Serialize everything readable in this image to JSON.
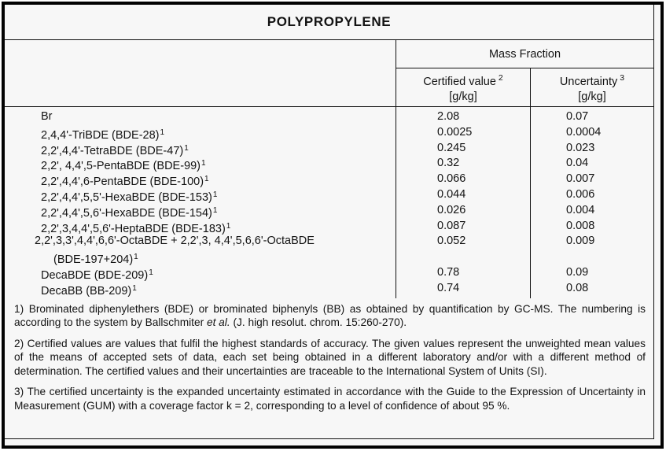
{
  "title": "POLYPROPYLENE",
  "table": {
    "group_header": "Mass Fraction",
    "columns": [
      {
        "label": "Certified value",
        "sup": "2",
        "unit": "[g/kg]"
      },
      {
        "label": "Uncertainty",
        "sup": "3",
        "unit": "[g/kg]"
      }
    ],
    "rows": [
      {
        "name": "Br",
        "sup": "",
        "certified": "2.08",
        "uncertainty": "0.07"
      },
      {
        "name": "2,4,4'-TriBDE (BDE-28)",
        "sup": "1",
        "certified": "0.0025",
        "uncertainty": "0.0004"
      },
      {
        "name": "2,2',4,4'-TetraBDE (BDE-47)",
        "sup": "1",
        "certified": "0.245",
        "uncertainty": "0.023"
      },
      {
        "name": "2,2', 4,4',5-PentaBDE (BDE-99)",
        "sup": "1",
        "certified": "0.32",
        "uncertainty": "0.04"
      },
      {
        "name": "2,2',4,4',6-PentaBDE (BDE-100)",
        "sup": "1",
        "certified": "0.066",
        "uncertainty": "0.007"
      },
      {
        "name": "2,2',4,4',5,5'-HexaBDE (BDE-153)",
        "sup": "1",
        "certified": "0.044",
        "uncertainty": "0.006"
      },
      {
        "name": "2,2',4,4',5,6'-HexaBDE (BDE-154)",
        "sup": "1",
        "certified": "0.026",
        "uncertainty": "0.004"
      },
      {
        "name": "2,2',3,4,4',5,6'-HeptaBDE (BDE-183)",
        "sup": "1",
        "certified": "0.087",
        "uncertainty": "0.008"
      },
      {
        "name": "2,2',3,3',4,4',6,6'-OctaBDE + 2,2',3, 4,4',5,6,6'-OctaBDE",
        "sup": "",
        "name2": "(BDE-197+204)",
        "sup2": "1",
        "certified": "0.052",
        "uncertainty": "0.009"
      },
      {
        "name": "DecaBDE (BDE-209)",
        "sup": "1",
        "certified": "0.78",
        "uncertainty": "0.09"
      },
      {
        "name": "DecaBB (BB-209)",
        "sup": "1",
        "certified": "0.74",
        "uncertainty": "0.08"
      }
    ]
  },
  "footnotes": [
    {
      "segments": [
        {
          "text": "1) Brominated diphenylethers (BDE) or brominated biphenyls (BB) as obtained by quantification by GC-MS. The numbering is according to the system by Ballschmiter "
        },
        {
          "text": "et al.",
          "italic": true
        },
        {
          "text": " (J. high resolut. chrom. 15:260-270)."
        }
      ]
    },
    {
      "segments": [
        {
          "text": "2) Certified values are values that fulfil the highest standards of accuracy. The given values represent the unweighted mean values of the means of accepted sets of data, each set being obtained in a different laboratory and/or with a different method of determination. The certified values and their uncertainties are traceable to the International System of Units (SI)."
        }
      ]
    },
    {
      "segments": [
        {
          "text": "3) The certified uncertainty is the expanded uncertainty estimated in accordance with the Guide to the Expression of Uncertainty in Measurement (GUM) with a coverage factor k = 2, corresponding to a level of confidence of about 95 %."
        }
      ]
    }
  ]
}
